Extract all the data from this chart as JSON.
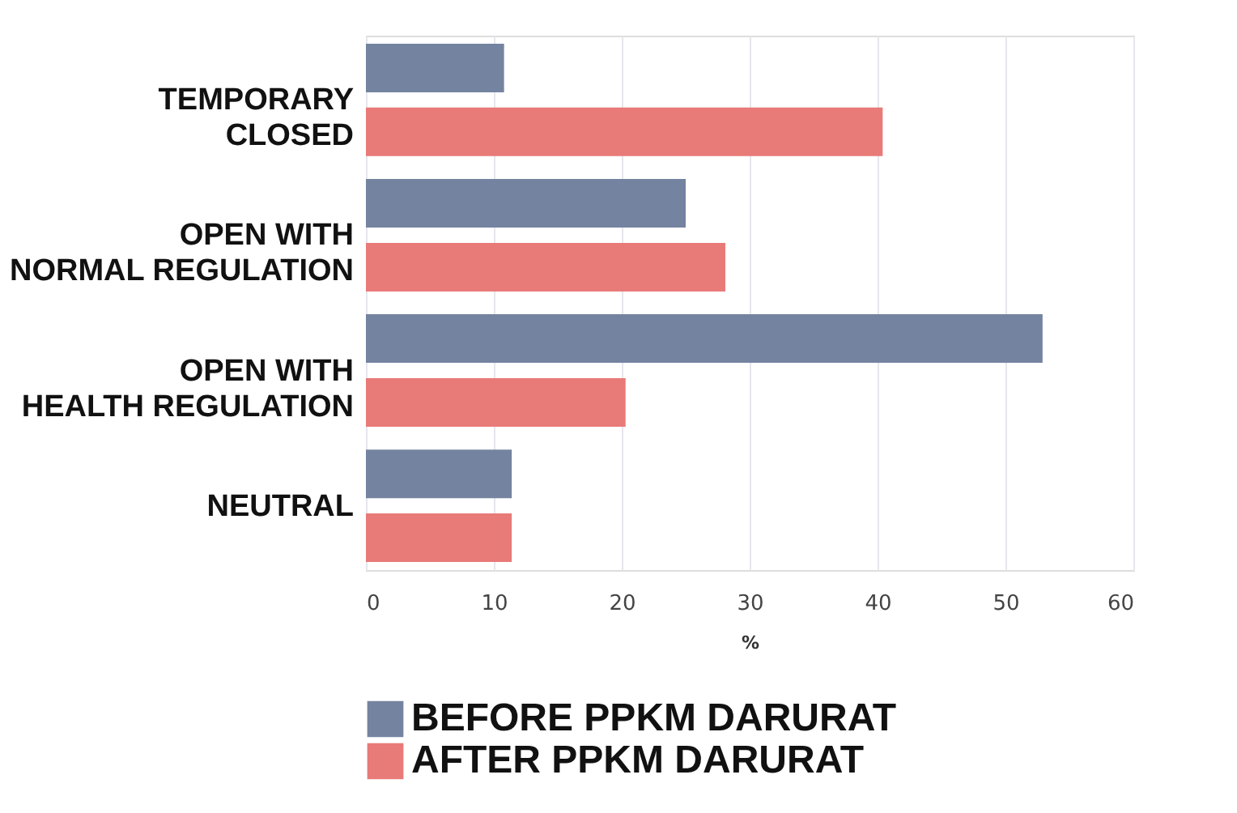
{
  "chart_data": {
    "type": "bar",
    "orientation": "horizontal",
    "xlabel": "%",
    "categories": [
      "TEMPORARY CLOSED",
      "OPEN WITH NORMAL REGULATION",
      "OPEN WITH HEALTH REGULATION",
      "NEUTRAL"
    ],
    "series": [
      {
        "name": "BEFORE PPKM DARURAT",
        "color": "#7483a0",
        "values": [
          10.8,
          25.0,
          52.9,
          11.4
        ]
      },
      {
        "name": "AFTER PPKM DARURAT",
        "color": "#e87a78",
        "values": [
          40.4,
          28.1,
          20.3,
          11.4
        ]
      }
    ],
    "xlim": [
      0,
      60
    ],
    "xticks": [
      0,
      10,
      20,
      30,
      40,
      50,
      60
    ],
    "grid": "x",
    "legend": "bottom"
  }
}
